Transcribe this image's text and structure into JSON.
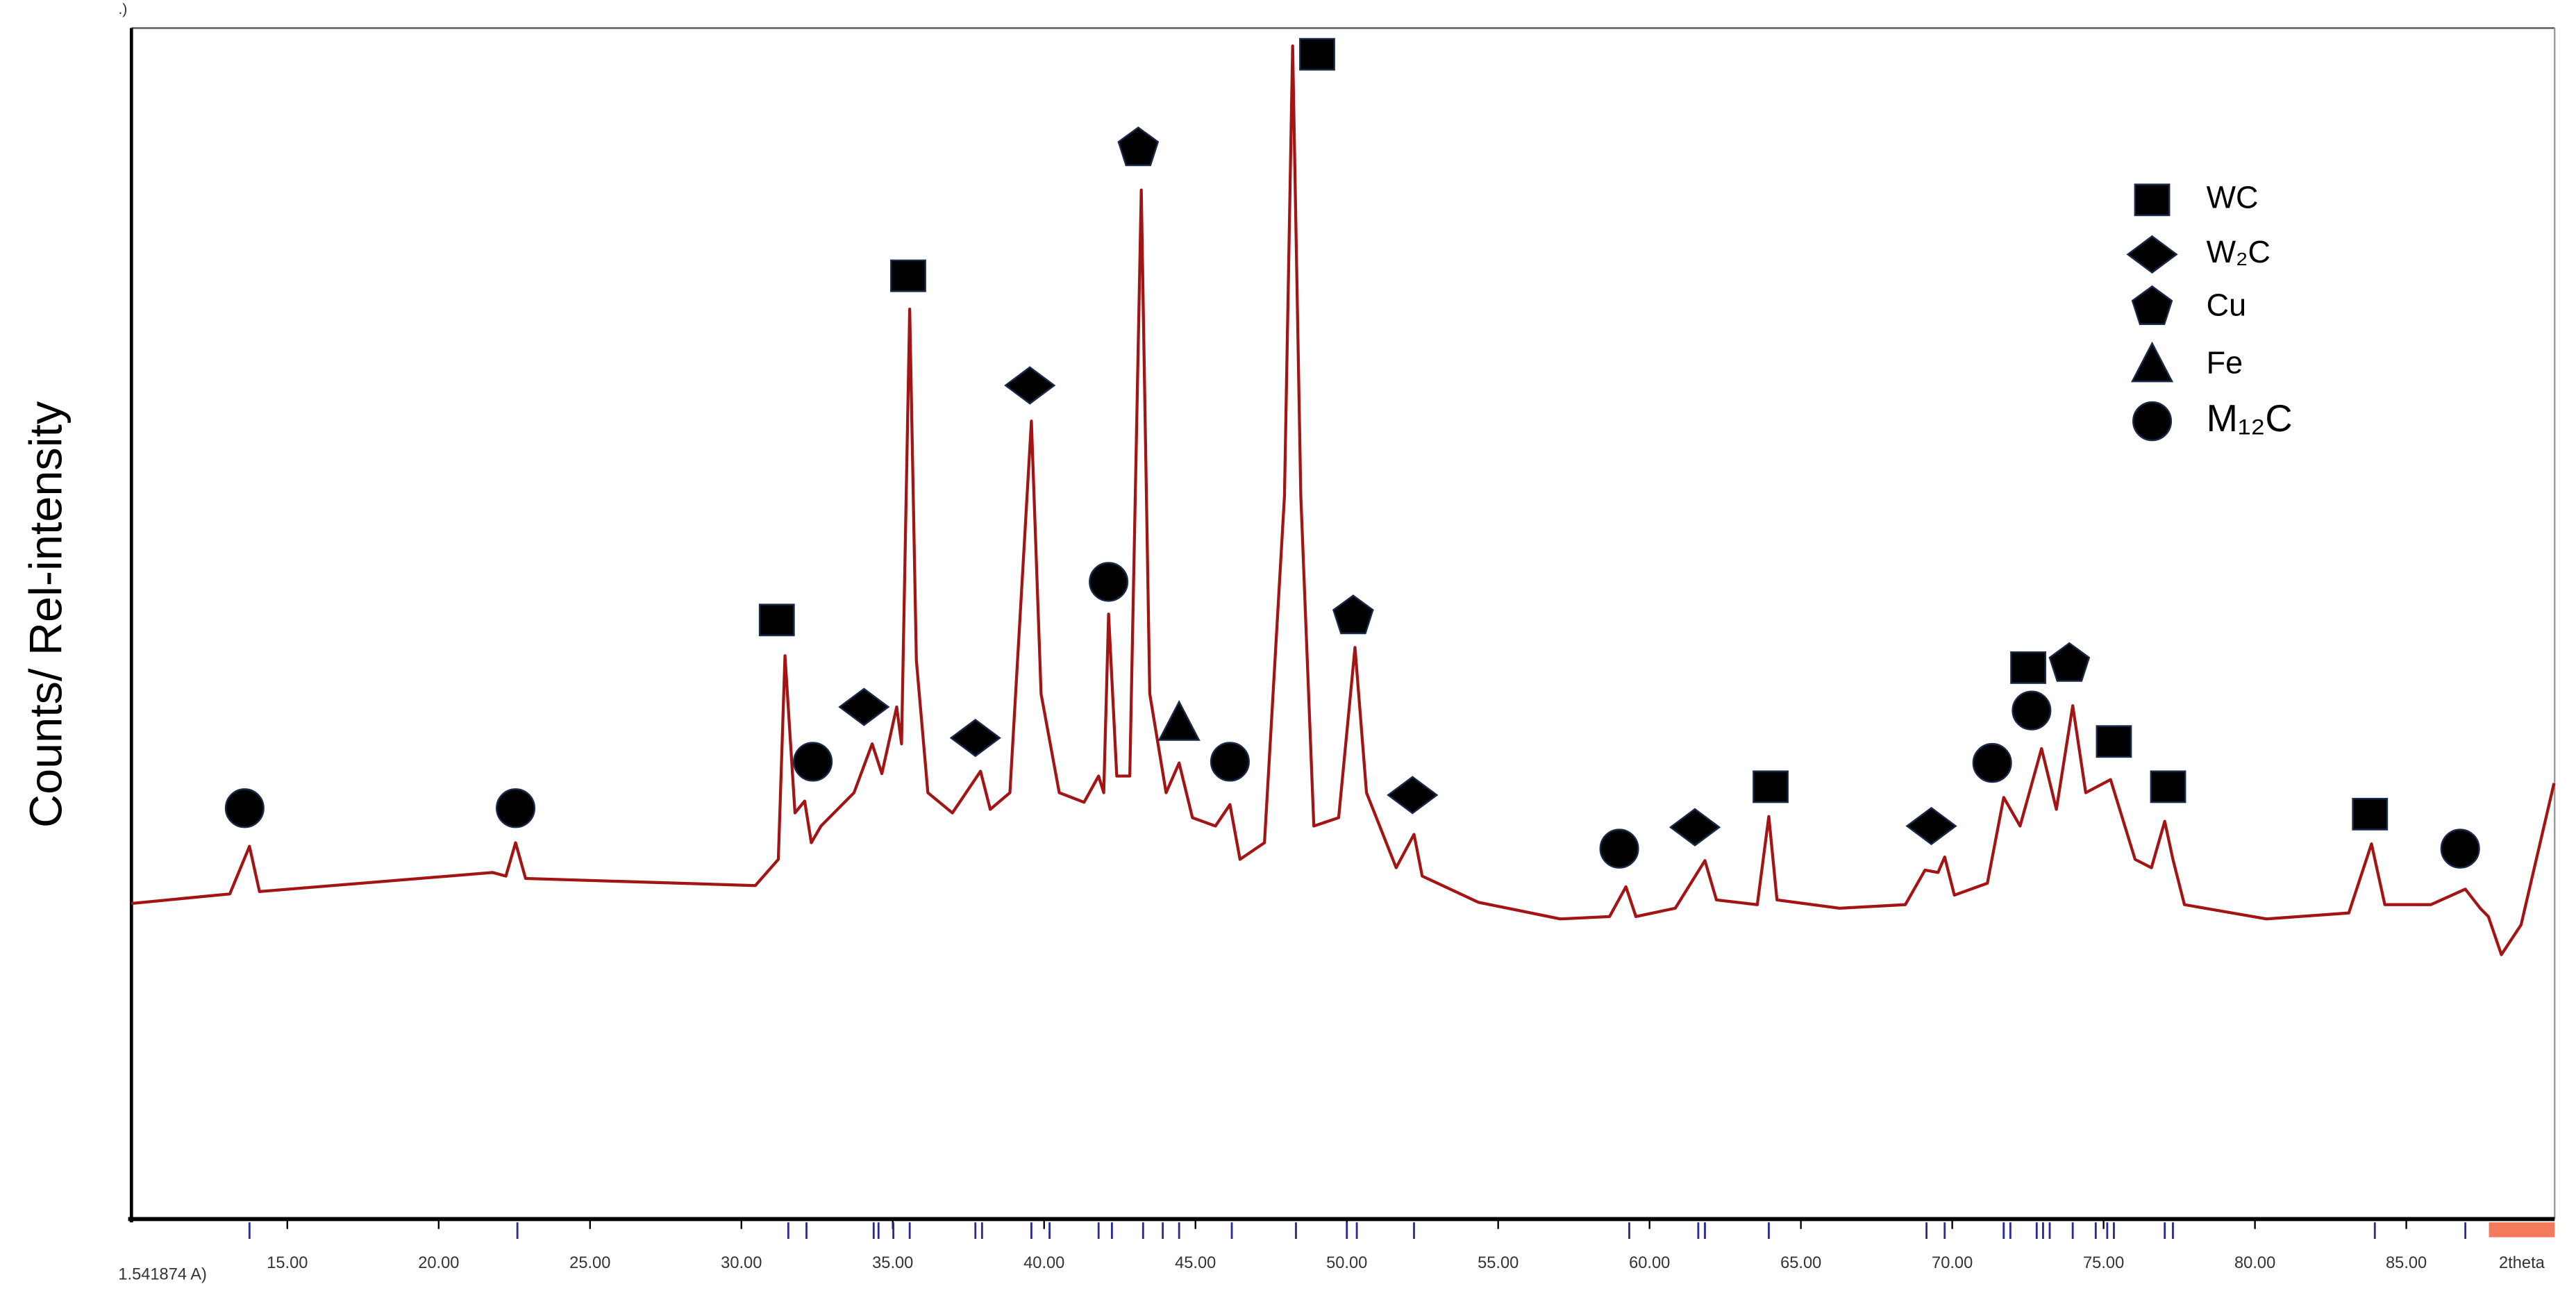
{
  "chart_data": {
    "type": "line",
    "ylabel": "Counts/ Rel-intensity",
    "xlabel": "2theta",
    "corner_text": ".)",
    "wavelength_text": "1.541874 A)",
    "xlim": [
      9.85,
      89.9
    ],
    "ylim": [
      0,
      100
    ],
    "xticks": [
      {
        "value": 15,
        "label": "15.00"
      },
      {
        "value": 20,
        "label": "20.00"
      },
      {
        "value": 25,
        "label": "25.00"
      },
      {
        "value": 30,
        "label": "30.00"
      },
      {
        "value": 35,
        "label": "35.00"
      },
      {
        "value": 40,
        "label": "40.00"
      },
      {
        "value": 45,
        "label": "45.00"
      },
      {
        "value": 50,
        "label": "50.00"
      },
      {
        "value": 55,
        "label": "55.00"
      },
      {
        "value": 60,
        "label": "60.00"
      },
      {
        "value": 65,
        "label": "65.00"
      },
      {
        "value": 70,
        "label": "70.00"
      },
      {
        "value": 75,
        "label": "75.00"
      },
      {
        "value": 80,
        "label": "80.00"
      },
      {
        "value": 85,
        "label": "85.00"
      }
    ],
    "x": [
      9.85,
      13.1,
      13.75,
      14.08,
      21.78,
      22.22,
      22.54,
      22.87,
      30.46,
      31.22,
      31.44,
      31.77,
      32.09,
      32.31,
      32.63,
      33.72,
      34.32,
      34.64,
      35.13,
      35.29,
      35.56,
      35.78,
      36.16,
      36.97,
      37.9,
      38.22,
      38.87,
      39.58,
      39.9,
      40.5,
      41.32,
      41.8,
      41.97,
      42.13,
      42.4,
      42.83,
      43.21,
      43.49,
      44.03,
      44.46,
      44.9,
      45.66,
      46.14,
      46.47,
      47.28,
      47.94,
      48.21,
      48.48,
      48.91,
      49.73,
      50.27,
      50.65,
      51.63,
      52.22,
      52.49,
      54.34,
      57.05,
      58.68,
      59.22,
      59.55,
      60.85,
      61.83,
      62.21,
      63.56,
      63.94,
      64.21,
      66.28,
      68.45,
      69.1,
      69.53,
      69.75,
      70.07,
      71.16,
      71.7,
      72.24,
      72.95,
      73.44,
      73.98,
      74.41,
      75.23,
      76.04,
      76.58,
      77.02,
      77.29,
      77.67,
      80.38,
      83.1,
      83.85,
      84.29,
      85.81,
      86.95,
      87.44,
      87.71,
      88.14,
      88.79,
      89.88
    ],
    "series": [
      {
        "name": "pattern",
        "color": "#a31515",
        "values": [
          26.5,
          27.3,
          31.3,
          27.5,
          29.1,
          28.8,
          31.6,
          28.6,
          28.0,
          30.2,
          47.3,
          34.1,
          35.1,
          31.6,
          33.0,
          35.8,
          39.9,
          37.4,
          43.0,
          39.9,
          76.4,
          46.9,
          35.8,
          34.1,
          37.6,
          34.4,
          35.8,
          67.0,
          44.1,
          35.8,
          35.0,
          37.2,
          35.8,
          50.8,
          37.2,
          37.2,
          86.4,
          44.1,
          35.8,
          38.3,
          33.7,
          33.0,
          34.8,
          30.2,
          31.6,
          60.7,
          98.5,
          60.7,
          33.0,
          33.7,
          48.0,
          35.8,
          29.5,
          32.3,
          28.8,
          26.6,
          25.2,
          25.4,
          27.9,
          25.4,
          26.1,
          30.1,
          26.8,
          26.4,
          33.8,
          26.8,
          26.1,
          26.4,
          29.3,
          29.1,
          30.4,
          27.2,
          28.2,
          35.4,
          33.0,
          39.5,
          34.4,
          43.1,
          35.8,
          36.9,
          30.2,
          29.5,
          33.4,
          30.2,
          26.4,
          25.2,
          25.7,
          31.5,
          26.4,
          26.4,
          27.7,
          26.1,
          25.4,
          22.2,
          24.7,
          36.6
        ]
      }
    ],
    "phases": [
      {
        "name": "WC",
        "shape": "square",
        "color": "#000000",
        "x": [
          31.17,
          35.51,
          49.02,
          64.0,
          72.51,
          75.34,
          77.13,
          83.8
        ],
        "y": [
          50.3,
          79.2,
          97.8,
          36.3,
          46.3,
          40.1,
          36.3,
          34.0
        ]
      },
      {
        "name": "W₂C",
        "shape": "diamond",
        "color": "#000000",
        "x": [
          34.05,
          37.73,
          39.53,
          52.17,
          61.5,
          69.31
        ],
        "y": [
          43.0,
          40.4,
          70.0,
          35.6,
          32.9,
          33.0
        ]
      },
      {
        "name": "Cu",
        "shape": "pentagon",
        "color": "#000000",
        "x": [
          43.11,
          50.21,
          73.87
        ],
        "y": [
          89.9,
          50.6,
          46.6
        ]
      },
      {
        "name": "Fe",
        "shape": "triangle",
        "color": "#000000",
        "x": [
          44.46
        ],
        "y": [
          41.6
        ]
      },
      {
        "name": "M₁₂C",
        "shape": "circle",
        "color": "#000000",
        "x": [
          13.59,
          22.54,
          32.36,
          42.13,
          46.14,
          59.0,
          71.32,
          72.62,
          86.78
        ],
        "y": [
          34.5,
          34.5,
          38.4,
          53.5,
          38.4,
          31.1,
          38.3,
          42.7,
          31.1
        ]
      }
    ],
    "reference_positions": [
      13.75,
      22.6,
      31.55,
      32.15,
      34.37,
      34.53,
      35.02,
      35.56,
      37.73,
      37.95,
      39.58,
      40.18,
      41.8,
      42.24,
      43.27,
      43.92,
      44.46,
      46.2,
      48.32,
      50.0,
      50.33,
      52.22,
      59.33,
      61.61,
      61.83,
      63.94,
      69.15,
      69.75,
      71.7,
      71.92,
      72.79,
      73.0,
      73.22,
      73.98,
      74.74,
      75.12,
      75.34,
      77.02,
      77.29,
      83.96,
      86.95
    ],
    "reference_color": "#2a2a9a",
    "legend": "top-right"
  }
}
